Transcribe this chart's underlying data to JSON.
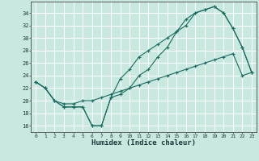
{
  "xlabel": "Humidex (Indice chaleur)",
  "background_color": "#c8e8e0",
  "grid_color": "#ffffff",
  "line_color": "#1a6b60",
  "xlim": [
    -0.5,
    23.5
  ],
  "ylim": [
    15.0,
    35.8
  ],
  "yticks": [
    16,
    18,
    20,
    22,
    24,
    26,
    28,
    30,
    32,
    34
  ],
  "xticks": [
    0,
    1,
    2,
    3,
    4,
    5,
    6,
    7,
    8,
    9,
    10,
    11,
    12,
    13,
    14,
    15,
    16,
    17,
    18,
    19,
    20,
    21,
    22,
    23
  ],
  "line1_x": [
    0,
    1,
    2,
    3,
    4,
    5,
    6,
    7,
    8,
    9,
    10,
    11,
    12,
    13,
    14,
    15,
    16,
    17,
    18,
    19,
    20,
    21,
    22,
    23
  ],
  "line1_y": [
    23,
    22,
    20,
    19,
    19,
    19,
    16,
    16,
    20.5,
    23.5,
    25,
    27,
    28,
    29,
    30,
    31,
    33,
    34,
    34.5,
    35,
    34,
    31.5,
    28.5,
    24.5
  ],
  "line2_x": [
    0,
    1,
    2,
    3,
    4,
    5,
    6,
    7,
    8,
    9,
    10,
    11,
    12,
    13,
    14,
    15,
    16,
    17,
    18,
    19,
    20,
    21,
    22,
    23
  ],
  "line2_y": [
    23,
    22,
    20,
    19,
    19,
    19,
    16,
    16,
    20.5,
    21,
    22,
    24,
    25,
    27,
    28.5,
    31,
    32,
    34,
    34.5,
    35,
    34,
    31.5,
    28.5,
    24.5
  ],
  "line3_x": [
    0,
    1,
    2,
    3,
    4,
    5,
    6,
    7,
    8,
    9,
    10,
    11,
    12,
    13,
    14,
    15,
    16,
    17,
    18,
    19,
    20,
    21,
    22,
    23
  ],
  "line3_y": [
    23,
    22,
    20,
    19.5,
    19.5,
    20,
    20,
    20.5,
    21,
    21.5,
    22,
    22.5,
    23,
    23.5,
    24,
    24.5,
    25,
    25.5,
    26,
    26.5,
    27,
    27.5,
    24,
    24.5
  ]
}
